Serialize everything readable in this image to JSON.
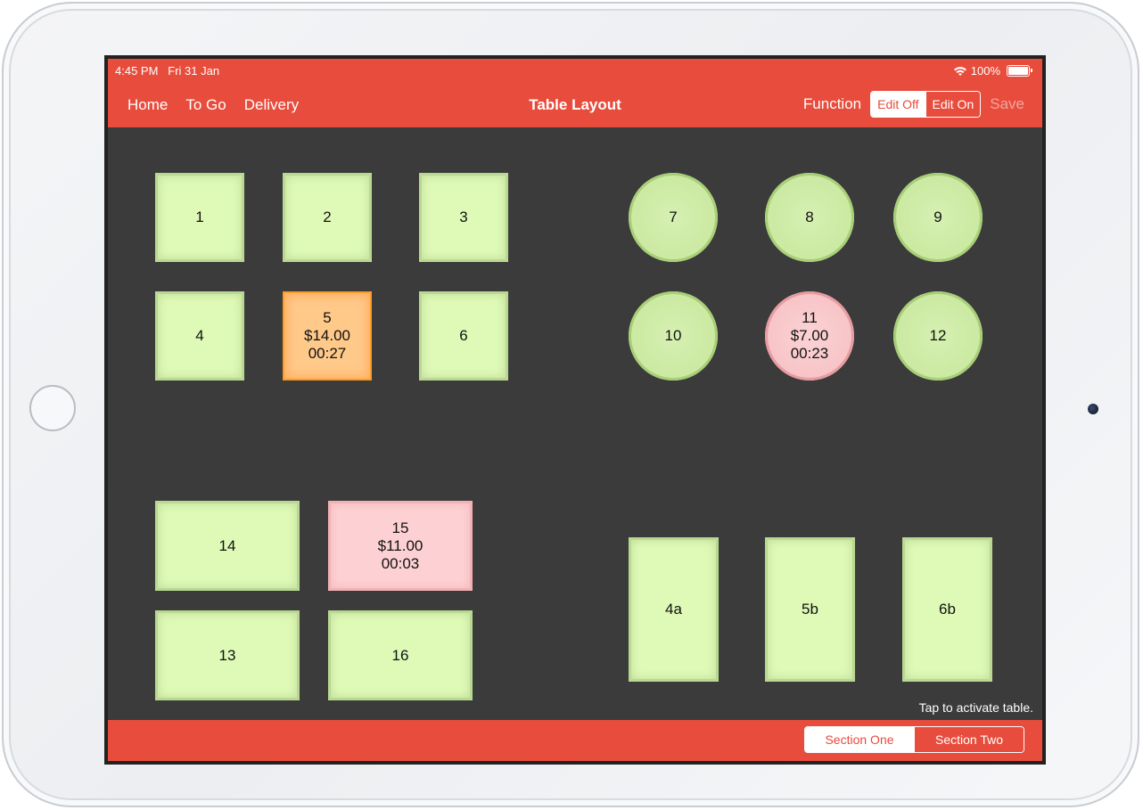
{
  "status": {
    "time": "4:45 PM",
    "date": "Fri 31 Jan",
    "battery": "100%"
  },
  "nav": {
    "left_items": [
      "Home",
      "To Go",
      "Delivery"
    ],
    "title": "Table Layout",
    "function_label": "Function",
    "edit_off": "Edit Off",
    "edit_on": "Edit On",
    "edit_selected": "Edit Off",
    "save": "Save"
  },
  "colors": {
    "accent": "#e74c3c",
    "free_table": "#defab6",
    "occupied_orange": "#ffc98a",
    "occupied_pink": "#fdd1d3",
    "floor": "#3b3b3b"
  },
  "tables": [
    {
      "id": "1",
      "shape": "square",
      "status": "free",
      "label": "1"
    },
    {
      "id": "2",
      "shape": "square",
      "status": "free",
      "label": "2"
    },
    {
      "id": "3",
      "shape": "square",
      "status": "free",
      "label": "3"
    },
    {
      "id": "4",
      "shape": "square",
      "status": "free",
      "label": "4"
    },
    {
      "id": "5",
      "shape": "square",
      "status": "orange",
      "label": "5\n$14.00\n00:27"
    },
    {
      "id": "6",
      "shape": "square",
      "status": "free",
      "label": "6"
    },
    {
      "id": "7",
      "shape": "round",
      "status": "free",
      "label": "7"
    },
    {
      "id": "8",
      "shape": "round",
      "status": "free",
      "label": "8"
    },
    {
      "id": "9",
      "shape": "round",
      "status": "free",
      "label": "9"
    },
    {
      "id": "10",
      "shape": "round",
      "status": "free",
      "label": "10"
    },
    {
      "id": "11",
      "shape": "round",
      "status": "pink",
      "label": "11\n$7.00\n00:23"
    },
    {
      "id": "12",
      "shape": "round",
      "status": "free",
      "label": "12"
    },
    {
      "id": "14",
      "shape": "rect",
      "status": "free",
      "label": "14"
    },
    {
      "id": "15",
      "shape": "rect",
      "status": "pink",
      "label": "15\n$11.00\n00:03"
    },
    {
      "id": "13",
      "shape": "rect",
      "status": "free",
      "label": "13"
    },
    {
      "id": "16",
      "shape": "rect",
      "status": "free",
      "label": "16"
    },
    {
      "id": "4a",
      "shape": "tall",
      "status": "free",
      "label": "4a"
    },
    {
      "id": "5b",
      "shape": "tall",
      "status": "free",
      "label": "5b"
    },
    {
      "id": "6b",
      "shape": "tall",
      "status": "free",
      "label": "6b"
    }
  ],
  "hint": "Tap to activate table.",
  "sections": {
    "one": "Section One",
    "two": "Section Two",
    "selected": "Section One"
  }
}
